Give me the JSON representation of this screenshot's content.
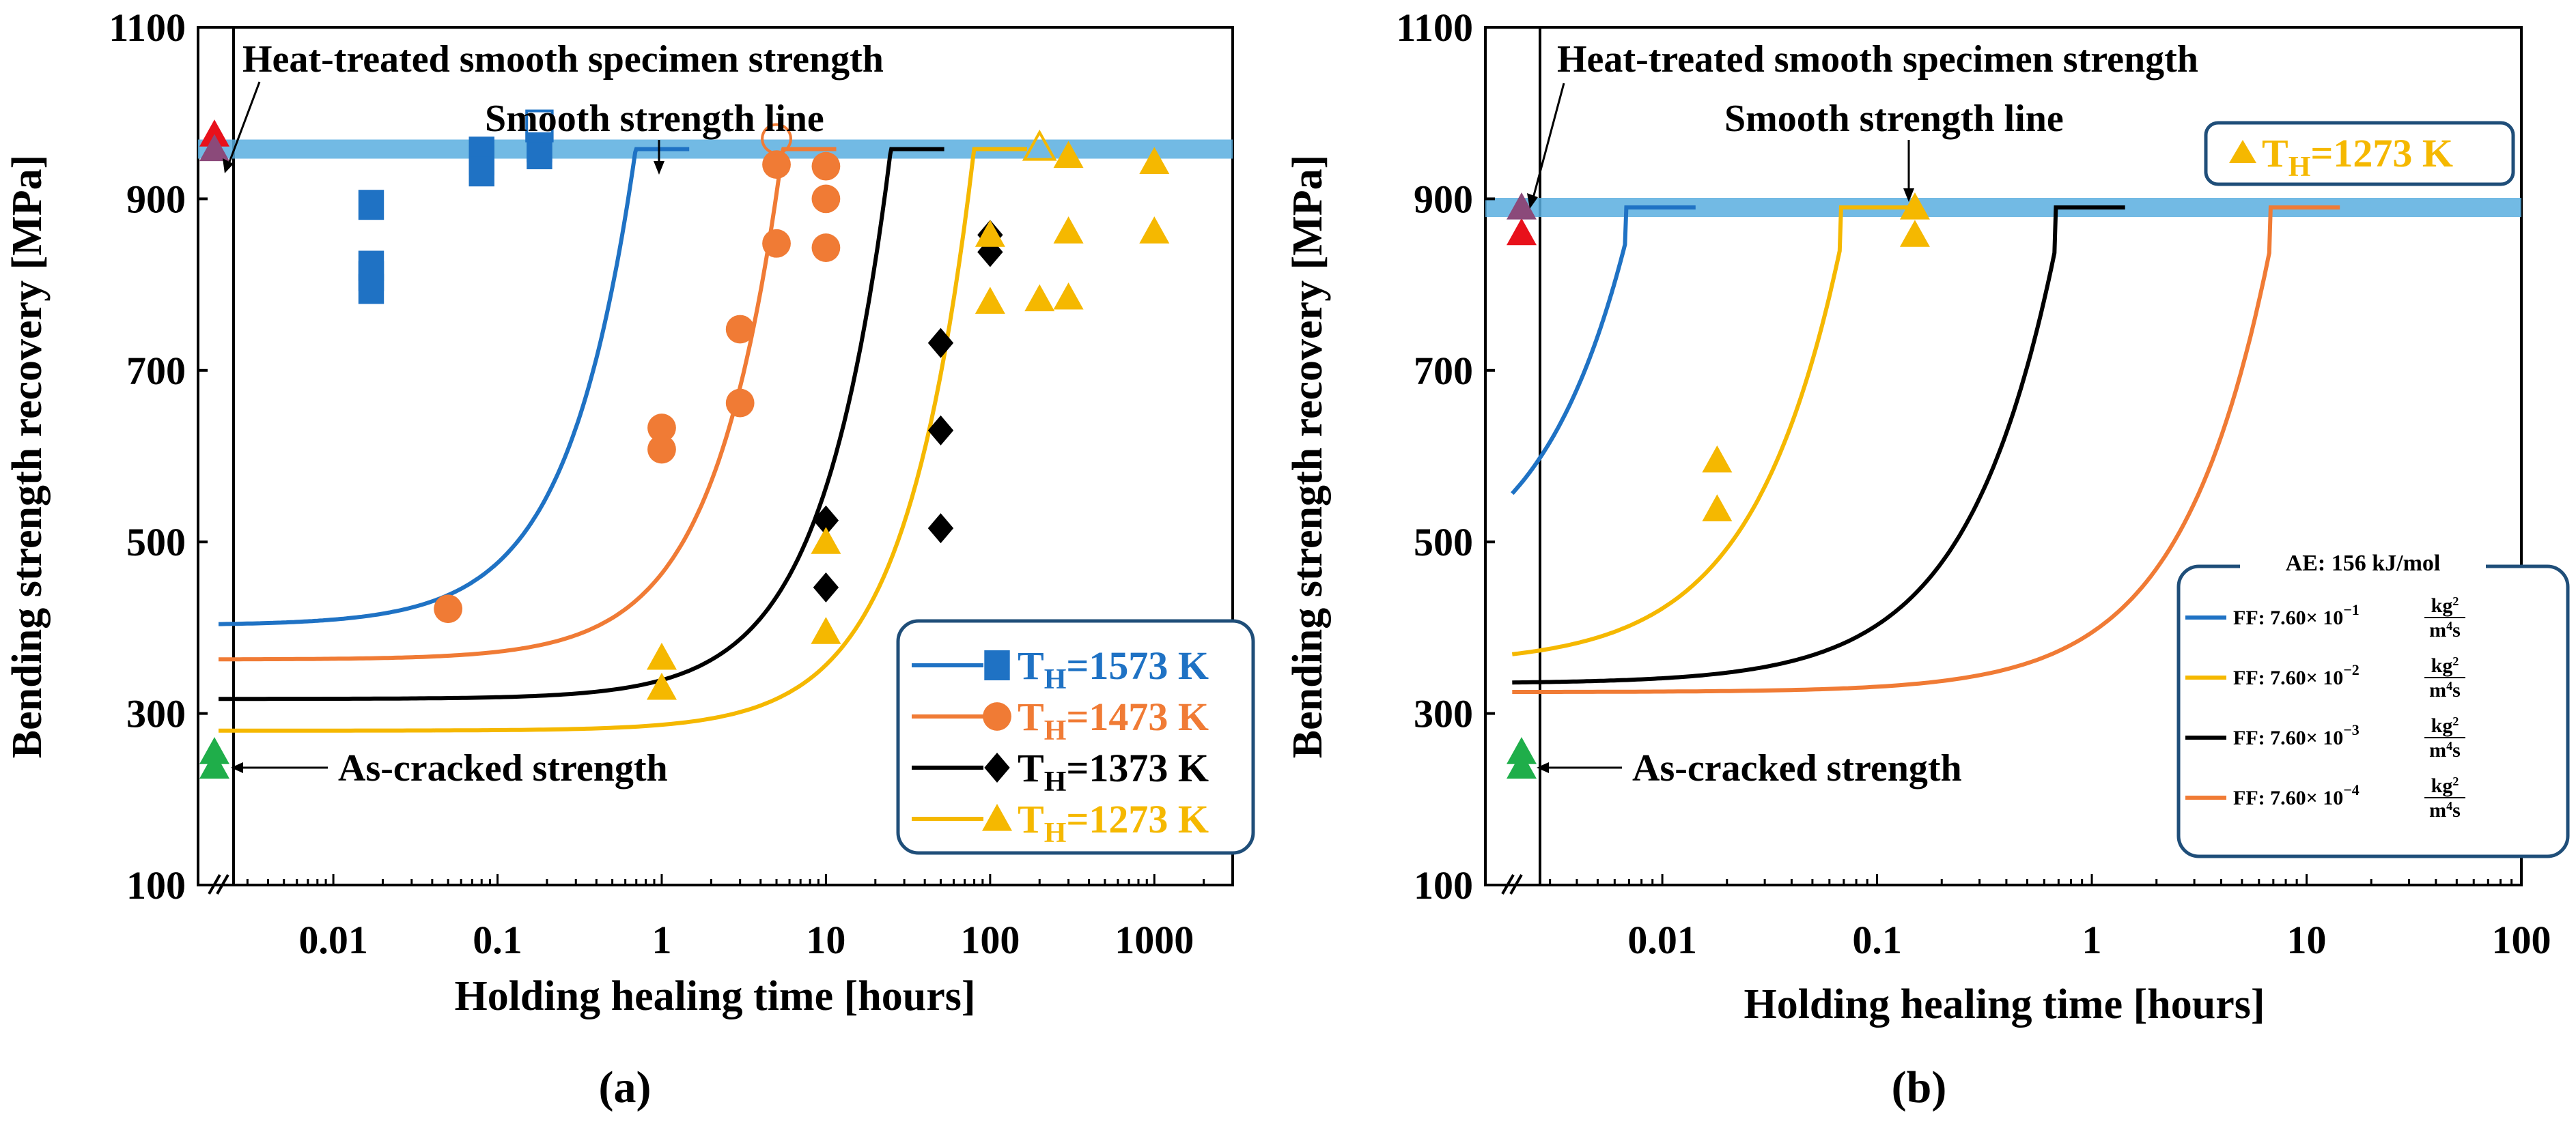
{
  "chart_data": [
    {
      "type": "scatter",
      "panel_label": "(a)",
      "xlabel": "Holding healing time [hours]",
      "ylabel": "Bending strength recovery [MPa]",
      "xscale": "log",
      "xlim": [
        0.0015,
        3000
      ],
      "ylim": [
        100,
        1100
      ],
      "xticks": [
        {
          "v": 0.01,
          "label": "0.01"
        },
        {
          "v": 0.1,
          "label": "0.1"
        },
        {
          "v": 1,
          "label": "1"
        },
        {
          "v": 10,
          "label": "10"
        },
        {
          "v": 100,
          "label": "100"
        },
        {
          "v": 1000,
          "label": "1000"
        }
      ],
      "yticks": [
        {
          "v": 100,
          "label": "100"
        },
        {
          "v": 300,
          "label": "300"
        },
        {
          "v": 500,
          "label": "500"
        },
        {
          "v": 700,
          "label": "700"
        },
        {
          "v": 900,
          "label": "900"
        },
        {
          "v": 1100,
          "label": "1100"
        }
      ],
      "smooth_strength": 958,
      "annotations": {
        "heat_treated": "Heat-treated smooth specimen strength",
        "smooth_line": "Smooth strength line",
        "as_cracked": "As-cracked strength"
      },
      "special_points": {
        "heat_treated": [
          {
            "y": 975,
            "color": "#e8111b"
          },
          {
            "y": 958,
            "color": "#8b4a7a"
          }
        ],
        "as_cracked": [
          {
            "y": 255,
            "color": "#1fae4a"
          },
          {
            "y": 238,
            "color": "#1fae4a"
          }
        ]
      },
      "series": [
        {
          "name": "T_H=1573 K",
          "label_main": "T",
          "label_sub": "H",
          "label_rest": "=1573 K",
          "color": "#1f72c4",
          "marker": "square",
          "curve": {
            "start": 0.002,
            "x_jump": 0.7,
            "a": 403,
            "b": 560
          },
          "points": [
            [
              0.017,
              893
            ],
            [
              0.017,
              822
            ],
            [
              0.017,
              810
            ],
            [
              0.017,
              795
            ],
            [
              0.08,
              955
            ],
            [
              0.08,
              945
            ],
            [
              0.08,
              932
            ],
            [
              0.18,
              960
            ],
            [
              0.18,
              952
            ]
          ],
          "open_points": [
            [
              0.18,
              985
            ]
          ]
        },
        {
          "name": "T_H=1473 K",
          "label_main": "T",
          "label_sub": "H",
          "label_rest": "=1473 K",
          "color": "#f07b35",
          "marker": "circle",
          "curve": {
            "start": 0.002,
            "x_jump": 5.5,
            "a": 363,
            "b": 600
          },
          "points": [
            [
              0.05,
              422
            ],
            [
              1,
              633
            ],
            [
              1,
              608
            ],
            [
              3,
              748
            ],
            [
              3,
              662
            ],
            [
              5,
              940
            ],
            [
              5,
              848
            ],
            [
              10,
              938
            ],
            [
              10,
              900
            ],
            [
              10,
              843
            ]
          ],
          "open_points": [
            [
              5,
              970
            ]
          ]
        },
        {
          "name": "T_H=1373 K",
          "label_main": "T",
          "label_sub": "H",
          "label_rest": "=1373 K",
          "color": "#000000",
          "marker": "diamond",
          "curve": {
            "start": 0.002,
            "x_jump": 25,
            "a": 317,
            "b": 645
          },
          "points": [
            [
              10,
              525
            ],
            [
              10,
              447
            ],
            [
              50,
              732
            ],
            [
              50,
              630
            ],
            [
              50,
              516
            ],
            [
              100,
              858
            ],
            [
              100,
              838
            ]
          ],
          "open_points": []
        },
        {
          "name": "T_H=1273 K",
          "label_main": "T",
          "label_sub": "H",
          "label_rest": "=1273 K",
          "color": "#f5b800",
          "marker": "triangle",
          "curve": {
            "start": 0.002,
            "x_jump": 80,
            "a": 280,
            "b": 680
          },
          "points": [
            [
              1,
              365
            ],
            [
              1,
              330
            ],
            [
              10,
              500
            ],
            [
              10,
              395
            ],
            [
              100,
              858
            ],
            [
              100,
              780
            ],
            [
              200,
              783
            ],
            [
              300,
              950
            ],
            [
              300,
              862
            ],
            [
              300,
              785
            ],
            [
              1000,
              943
            ],
            [
              1000,
              862
            ]
          ],
          "open_points": [
            [
              200,
              960
            ]
          ]
        }
      ]
    },
    {
      "type": "scatter",
      "panel_label": "(b)",
      "xlabel": "Holding healing time [hours]",
      "ylabel": "Bending strength recovery [MPa]",
      "xscale": "log",
      "xlim": [
        0.0015,
        100
      ],
      "ylim": [
        100,
        1100
      ],
      "xticks": [
        {
          "v": 0.01,
          "label": "0.01"
        },
        {
          "v": 0.1,
          "label": "0.1"
        },
        {
          "v": 1,
          "label": "1"
        },
        {
          "v": 10,
          "label": "10"
        },
        {
          "v": 100,
          "label": "100"
        }
      ],
      "yticks": [
        {
          "v": 100,
          "label": "100"
        },
        {
          "v": 300,
          "label": "300"
        },
        {
          "v": 500,
          "label": "500"
        },
        {
          "v": 700,
          "label": "700"
        },
        {
          "v": 900,
          "label": "900"
        },
        {
          "v": 1100,
          "label": "1100"
        }
      ],
      "smooth_strength": 890,
      "annotations": {
        "heat_treated": "Heat-treated smooth specimen strength",
        "smooth_line": "Smooth strength line",
        "as_cracked": "As-cracked strength"
      },
      "data_legend": {
        "label_main": "T",
        "label_sub": "H",
        "label_rest": "=1273 K",
        "color": "#f5b800"
      },
      "special_points": {
        "heat_treated": [
          {
            "y": 860,
            "color": "#e8111b"
          },
          {
            "y": 890,
            "color": "#8b4a7a"
          }
        ],
        "as_cracked": [
          {
            "y": 255,
            "color": "#1fae4a"
          },
          {
            "y": 238,
            "color": "#1fae4a"
          }
        ]
      },
      "points": [
        [
          0.018,
          595
        ],
        [
          0.018,
          538
        ],
        [
          0.15,
          890
        ],
        [
          0.15,
          858
        ]
      ],
      "fit_legend_title": "AE: 156 kJ/mol",
      "fits": [
        {
          "name": "FF: 7.60× 10^-1",
          "text": "FF: 7.60× 10",
          "exp": "−1",
          "color": "#1f72c4",
          "curve": {
            "start": 0.002,
            "x_jump": 0.0068,
            "a": 443,
            "b": 410
          }
        },
        {
          "name": "FF: 7.60× 10^-2",
          "text": "FF: 7.60× 10",
          "exp": "−2",
          "color": "#f5b800",
          "curve": {
            "start": 0.002,
            "x_jump": 0.068,
            "a": 357,
            "b": 490
          }
        },
        {
          "name": "FF: 7.60× 10^-3",
          "text": "FF: 7.60× 10",
          "exp": "−3",
          "color": "#000000",
          "curve": {
            "start": 0.002,
            "x_jump": 0.68,
            "a": 335,
            "b": 510
          }
        },
        {
          "name": "FF: 7.60× 10^-4",
          "text": "FF: 7.60× 10",
          "exp": "−4",
          "color": "#f07b35",
          "curve": {
            "start": 0.002,
            "x_jump": 6.8,
            "a": 325,
            "b": 520
          }
        }
      ],
      "unit_num": "kg",
      "unit_num_exp": "2",
      "unit_den": "m",
      "unit_den_exp": "4",
      "unit_den_tail": "s"
    }
  ]
}
